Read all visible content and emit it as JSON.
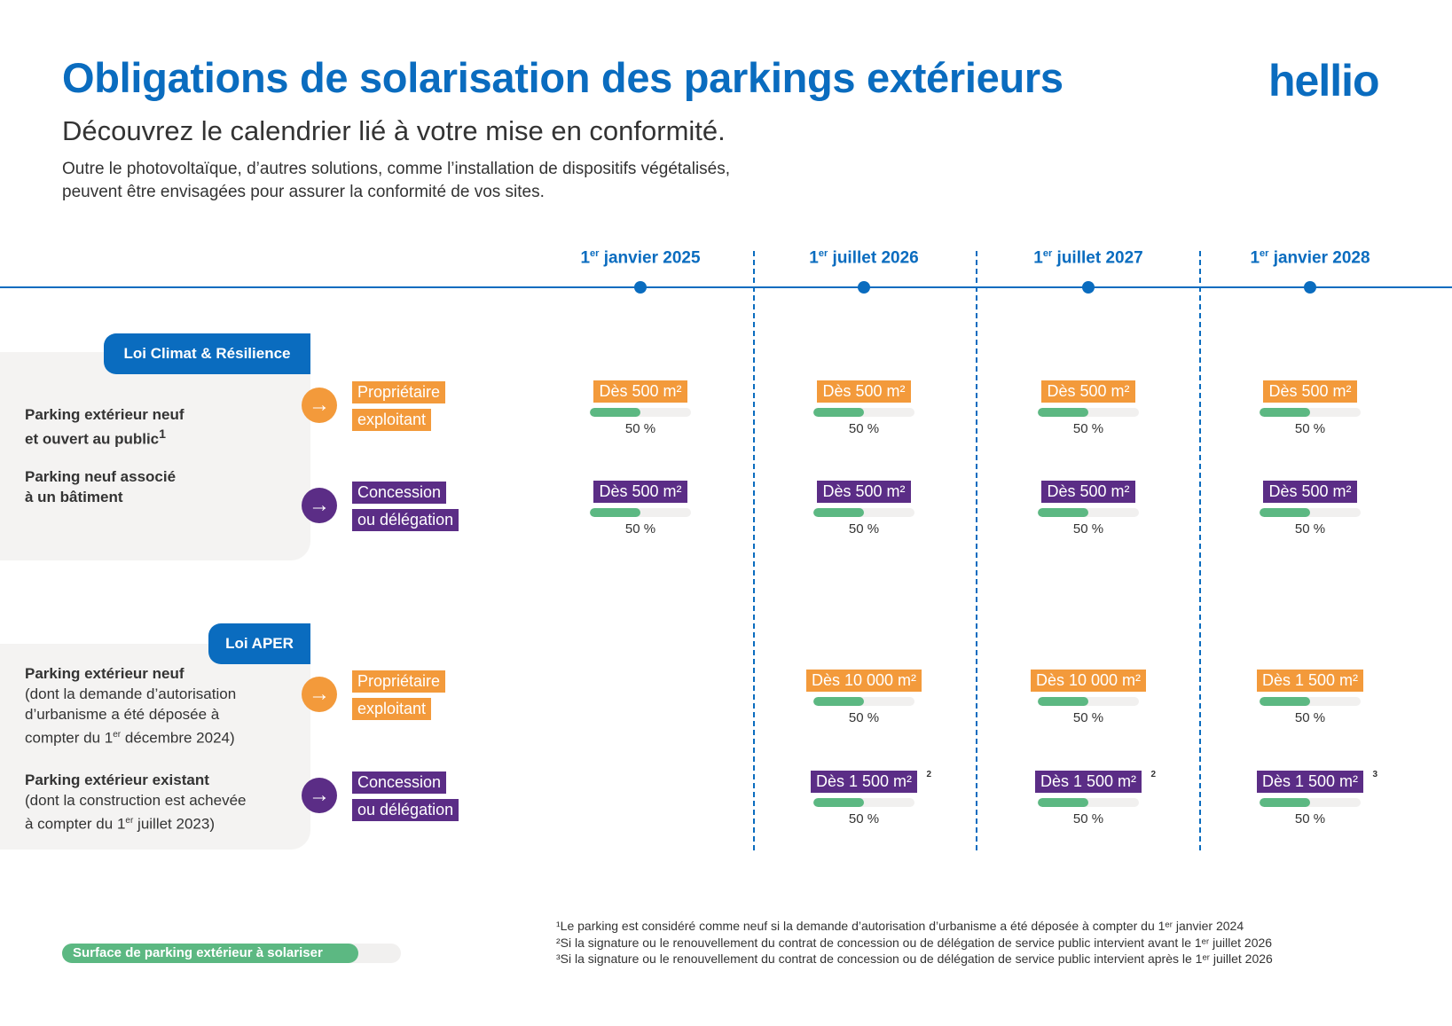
{
  "header": {
    "title": "Obligations de solarisation des parkings extérieurs",
    "logo": "hellio",
    "subtitle": "Découvrez le calendrier lié à votre mise en conformité.",
    "intro_line1": "Outre le photovoltaïque, d’autres solutions, comme l’installation de dispositifs végétalisés,",
    "intro_line2": "peuvent être envisagées pour assurer la conformité de vos sites."
  },
  "colors": {
    "blue": "#0a6cbf",
    "orange": "#f39a3b",
    "purple": "#5b2d86",
    "green": "#5cb882"
  },
  "dates": [
    {
      "sup": "er",
      "pre": "1",
      "text": " janvier 2025"
    },
    {
      "pre": "1",
      "sup": "er",
      "text": " juillet 2026"
    },
    {
      "pre": "1",
      "sup": "er",
      "text": " juillet 2027"
    },
    {
      "pre": "1",
      "sup": "er",
      "text": " janvier 2028"
    }
  ],
  "sections": [
    {
      "tab": "Loi Climat & Résilience",
      "rows": [
        {
          "label_bold": "Parking extérieur neuf",
          "label_bold2": "et ouvert au public",
          "label_sup": "1",
          "tag1": "Propriétaire",
          "tag2": "exploitant",
          "color": "orange",
          "cells": [
            {
              "badge": "Dès 500 m²",
              "pct": "50 %",
              "value": 50
            },
            {
              "badge": "Dès 500 m²",
              "pct": "50 %",
              "value": 50
            },
            {
              "badge": "Dès 500 m²",
              "pct": "50 %",
              "value": 50
            },
            {
              "badge": "Dès 500 m²",
              "pct": "50 %",
              "value": 50
            }
          ]
        },
        {
          "label_bold": "Parking neuf associé",
          "label_bold2": "à un bâtiment",
          "tag1": "Concession",
          "tag2": "ou délégation",
          "color": "purple",
          "cells": [
            {
              "badge": "Dès 500 m²",
              "pct": "50 %",
              "value": 50
            },
            {
              "badge": "Dès 500 m²",
              "pct": "50 %",
              "value": 50
            },
            {
              "badge": "Dès 500 m²",
              "pct": "50 %",
              "value": 50
            },
            {
              "badge": "Dès 500 m²",
              "pct": "50 %",
              "value": 50
            }
          ]
        }
      ]
    },
    {
      "tab": "Loi APER",
      "rows": [
        {
          "label_bold": "Parking extérieur neuf",
          "label_rest1": "(dont la demande d’autorisation",
          "label_rest2": "d’urbanisme a été déposée à",
          "label_rest3": "compter du 1",
          "label_rest3_sup": "er",
          "label_rest3_end": " décembre 2024)",
          "tag1": "Propriétaire",
          "tag2": "exploitant",
          "color": "orange",
          "cells": [
            null,
            {
              "badge": "Dès 10 000 m²",
              "pct": "50 %",
              "value": 50
            },
            {
              "badge": "Dès 10 000 m²",
              "pct": "50 %",
              "value": 50
            },
            {
              "badge": "Dès 1 500 m²",
              "pct": "50 %",
              "value": 50
            }
          ]
        },
        {
          "label_bold": "Parking extérieur existant",
          "label_rest1": "(dont la construction est achevée",
          "label_rest2": "à compter du 1",
          "label_rest2_sup": "er",
          "label_rest2_end": " juillet 2023)",
          "tag1": "Concession",
          "tag2": "ou délégation",
          "color": "purple",
          "cells": [
            null,
            {
              "badge": "Dès 1 500 m²",
              "note": "2",
              "pct": "50 %",
              "value": 50
            },
            {
              "badge": "Dès 1 500 m²",
              "note": "2",
              "pct": "50 %",
              "value": 50
            },
            {
              "badge": "Dès 1 500 m²",
              "note": "3",
              "pct": "50 %",
              "value": 50
            }
          ]
        }
      ]
    }
  ],
  "legend": {
    "label": "Surface de parking extérieur à solariser"
  },
  "footnotes": [
    "¹Le parking est considéré comme neuf si la demande d’autorisation d’urbanisme a été déposée à compter du 1ᵉʳ janvier 2024",
    "²Si la signature ou le renouvellement du contrat de concession ou de délégation de service public intervient avant le 1ᵉʳ juillet 2026",
    "³Si la signature ou le renouvellement du contrat de concession ou de délégation de service public intervient après le 1ᵉʳ juillet 2026"
  ]
}
